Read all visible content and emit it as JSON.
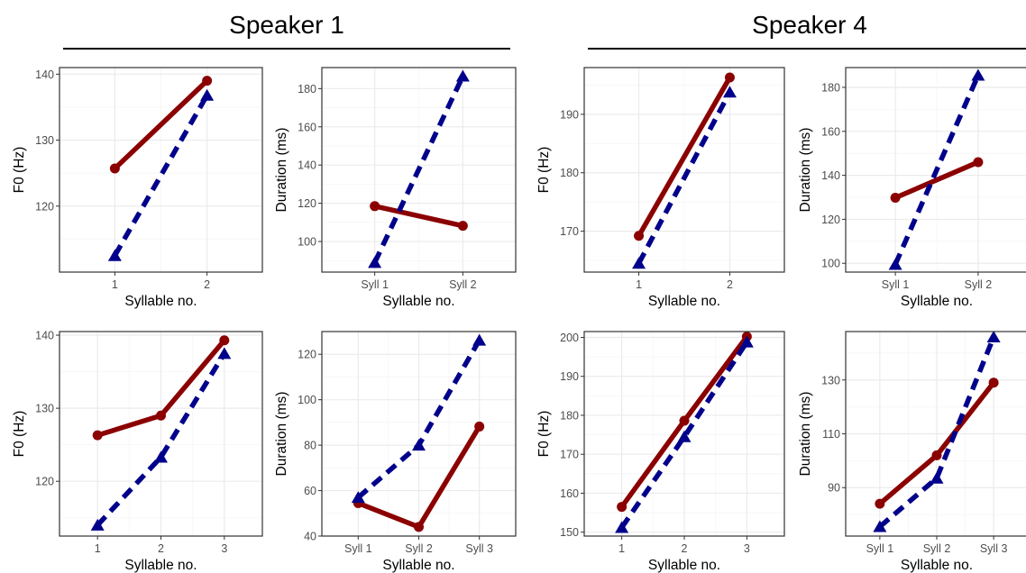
{
  "figure": {
    "groups": [
      {
        "title": "Speaker 1"
      },
      {
        "title": "Speaker 4"
      }
    ]
  },
  "colors": {
    "solid_series": "#8b0000",
    "dashed_series": "#00008b",
    "panel_border": "#333333",
    "grid_major": "#ebebeb",
    "grid_minor": "#f5f5f5",
    "tick_text": "#4d4d4d"
  },
  "chart_data": [
    {
      "type": "line",
      "group": "Speaker 1",
      "xlabel": "Syllable no.",
      "ylabel": "F0 (Hz)",
      "categories": [
        "1",
        "2"
      ],
      "ylim": [
        110,
        141
      ],
      "yticks": [
        120,
        130,
        140
      ],
      "grid": true,
      "series": [
        {
          "style": "solid",
          "marker": "circle",
          "values": [
            125.7,
            139.0
          ]
        },
        {
          "style": "dashed",
          "marker": "triangle",
          "values": [
            112.5,
            136.8
          ]
        }
      ]
    },
    {
      "type": "line",
      "group": "Speaker 1",
      "xlabel": "Syllable no.",
      "ylabel": "Duration (ms)",
      "categories": [
        "Syll 1",
        "Syll 2"
      ],
      "ylim": [
        84,
        191
      ],
      "yticks": [
        100,
        120,
        140,
        160,
        180
      ],
      "grid": true,
      "series": [
        {
          "style": "solid",
          "marker": "circle",
          "values": [
            118.5,
            108.2
          ]
        },
        {
          "style": "dashed",
          "marker": "triangle",
          "values": [
            89.0,
            186.5
          ]
        }
      ]
    },
    {
      "type": "line",
      "group": "Speaker 4",
      "xlabel": "Syllable no.",
      "ylabel": "F0 (Hz)",
      "categories": [
        "1",
        "2"
      ],
      "ylim": [
        163,
        198
      ],
      "yticks": [
        170,
        180,
        190
      ],
      "grid": true,
      "series": [
        {
          "style": "solid",
          "marker": "circle",
          "values": [
            169.2,
            196.3
          ]
        },
        {
          "style": "dashed",
          "marker": "triangle",
          "values": [
            164.5,
            193.8
          ]
        }
      ]
    },
    {
      "type": "line",
      "group": "Speaker 4",
      "xlabel": "Syllable no.",
      "ylabel": "Duration (ms)",
      "categories": [
        "Syll 1",
        "Syll 2"
      ],
      "ylim": [
        96,
        189
      ],
      "yticks": [
        100,
        120,
        140,
        160,
        180
      ],
      "grid": true,
      "series": [
        {
          "style": "solid",
          "marker": "circle",
          "values": [
            129.8,
            146.0
          ]
        },
        {
          "style": "dashed",
          "marker": "triangle",
          "values": [
            99.5,
            185.5
          ]
        }
      ]
    },
    {
      "type": "line",
      "group": "Speaker 1",
      "xlabel": "Syllable no.",
      "ylabel": "F0 (Hz)",
      "categories": [
        "1",
        "2",
        "3"
      ],
      "ylim": [
        112.5,
        140.5
      ],
      "yticks": [
        120,
        130,
        140
      ],
      "grid": true,
      "series": [
        {
          "style": "solid",
          "marker": "circle",
          "values": [
            126.3,
            129.0,
            139.3
          ]
        },
        {
          "style": "dashed",
          "marker": "triangle",
          "values": [
            114.0,
            123.3,
            137.5
          ]
        }
      ]
    },
    {
      "type": "line",
      "group": "Speaker 1",
      "xlabel": "Syllable no.",
      "ylabel": "Duration (ms)",
      "categories": [
        "Syll 1",
        "Syll 2",
        "Syll 3"
      ],
      "ylim": [
        40,
        130
      ],
      "yticks": [
        40,
        60,
        80,
        100,
        120
      ],
      "grid": true,
      "series": [
        {
          "style": "solid",
          "marker": "circle",
          "values": [
            54.5,
            44.0,
            88.2
          ]
        },
        {
          "style": "dashed",
          "marker": "triangle",
          "values": [
            57.0,
            80.0,
            126.2
          ]
        }
      ]
    },
    {
      "type": "line",
      "group": "Speaker 4",
      "xlabel": "Syllable no.",
      "ylabel": "F0 (Hz)",
      "categories": [
        "1",
        "2",
        "3"
      ],
      "ylim": [
        149,
        201.5
      ],
      "yticks": [
        150,
        160,
        170,
        180,
        190,
        200
      ],
      "grid": true,
      "series": [
        {
          "style": "solid",
          "marker": "circle",
          "values": [
            156.5,
            178.6,
            200.2
          ]
        },
        {
          "style": "dashed",
          "marker": "triangle",
          "values": [
            151.2,
            174.5,
            198.8
          ]
        }
      ]
    },
    {
      "type": "line",
      "group": "Speaker 4",
      "xlabel": "Syllable no.",
      "ylabel": "Duration (ms)",
      "categories": [
        "Syll 1",
        "Syll 2",
        "Syll 3"
      ],
      "ylim": [
        72,
        148
      ],
      "yticks": [
        90,
        110,
        130
      ],
      "grid": true,
      "series": [
        {
          "style": "solid",
          "marker": "circle",
          "values": [
            84.0,
            102.0,
            129.0
          ]
        },
        {
          "style": "dashed",
          "marker": "triangle",
          "values": [
            75.5,
            93.5,
            146.0
          ]
        }
      ]
    }
  ]
}
